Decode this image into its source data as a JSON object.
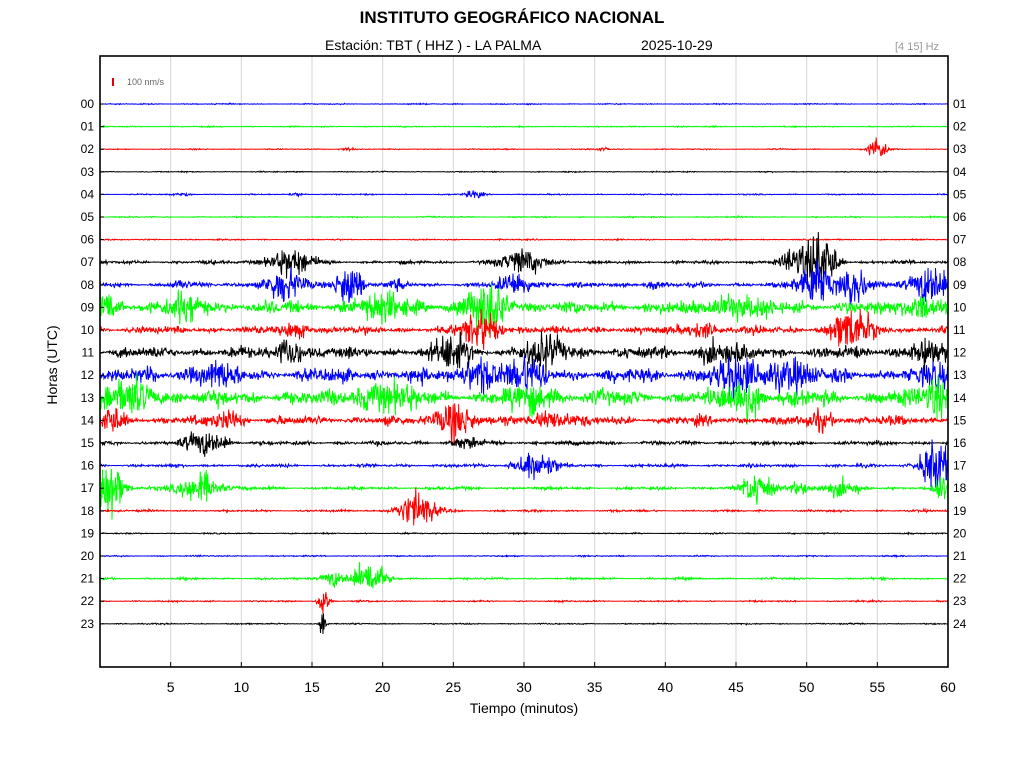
{
  "header": {
    "title": "INSTITUTO GEOGRÁFICO NACIONAL",
    "station": "Estación:  TBT ( HHZ ) - LA PALMA",
    "date": "2025-10-29",
    "band": "[4 15] Hz"
  },
  "chart_data": {
    "type": "line",
    "title": "INSTITUTO GEOGRÁFICO NACIONAL",
    "xlabel": "Tiempo (minutos)",
    "ylabel": "Horas (UTC)",
    "xlim": [
      0,
      60
    ],
    "x_ticks": [
      "5",
      "10",
      "15",
      "20",
      "25",
      "30",
      "35",
      "40",
      "45",
      "50",
      "55",
      "60"
    ],
    "left_ticks": [
      "00",
      "01",
      "02",
      "03",
      "04",
      "05",
      "06",
      "07",
      "08",
      "09",
      "10",
      "11",
      "12",
      "13",
      "14",
      "15",
      "16",
      "17",
      "18",
      "19",
      "20",
      "21",
      "22",
      "23"
    ],
    "right_ticks": [
      "01",
      "02",
      "03",
      "04",
      "05",
      "06",
      "07",
      "08",
      "09",
      "10",
      "11",
      "12",
      "13",
      "14",
      "15",
      "16",
      "17",
      "18",
      "19",
      "20",
      "21",
      "22",
      "23",
      "24"
    ],
    "scale_label": "100 nm/s",
    "scale_color": "#e00000",
    "colors": [
      "#0000ff",
      "#00ff00",
      "#ff0000",
      "#000000"
    ],
    "grid": true,
    "series": [
      {
        "hour": "00",
        "noise": 0.4,
        "events": []
      },
      {
        "hour": "01",
        "noise": 0.45,
        "events": []
      },
      {
        "hour": "02",
        "noise": 0.4,
        "events": [
          {
            "t": 55.0,
            "amp": 10,
            "dur": 0.6
          },
          {
            "t": 17.5,
            "amp": 1.2,
            "dur": 0.5
          },
          {
            "t": 35.5,
            "amp": 1.2,
            "dur": 0.5
          }
        ]
      },
      {
        "hour": "03",
        "noise": 0.4,
        "events": []
      },
      {
        "hour": "04",
        "noise": 0.45,
        "events": [
          {
            "t": 26.5,
            "amp": 3,
            "dur": 0.6
          },
          {
            "t": 6,
            "amp": 1.2,
            "dur": 0.5
          },
          {
            "t": 14,
            "amp": 1.2,
            "dur": 0.5
          }
        ]
      },
      {
        "hour": "05",
        "noise": 0.5,
        "events": []
      },
      {
        "hour": "06",
        "noise": 0.5,
        "events": []
      },
      {
        "hour": "07",
        "noise": 1.3,
        "events": [
          {
            "t": 13.5,
            "amp": 10,
            "dur": 1.6
          },
          {
            "t": 30,
            "amp": 9,
            "dur": 1.6
          },
          {
            "t": 49.5,
            "amp": 12,
            "dur": 1.2
          },
          {
            "t": 51.2,
            "amp": 22,
            "dur": 0.9
          }
        ]
      },
      {
        "hour": "08",
        "noise": 1.8,
        "events": [
          {
            "t": 13,
            "amp": 12,
            "dur": 1.4
          },
          {
            "t": 17.6,
            "amp": 18,
            "dur": 0.9
          },
          {
            "t": 29.5,
            "amp": 9,
            "dur": 1.2
          },
          {
            "t": 50.6,
            "amp": 18,
            "dur": 1.2
          },
          {
            "t": 53.5,
            "amp": 12,
            "dur": 1.1
          },
          {
            "t": 58.8,
            "amp": 16,
            "dur": 1.3
          },
          {
            "t": 5.7,
            "amp": 4,
            "dur": 0.5
          },
          {
            "t": 39.1,
            "amp": 4,
            "dur": 0.5
          },
          {
            "t": 21.1,
            "amp": 3,
            "dur": 0.6
          }
        ]
      },
      {
        "hour": "09",
        "noise": 5,
        "events": [
          {
            "t": 0.3,
            "amp": 12,
            "dur": 1
          },
          {
            "t": 27.4,
            "amp": 18,
            "dur": 1.4
          },
          {
            "t": 6,
            "amp": 8,
            "dur": 1.5
          },
          {
            "t": 20,
            "amp": 8,
            "dur": 2
          },
          {
            "t": 45,
            "amp": 7,
            "dur": 2
          },
          {
            "t": 58,
            "amp": 8,
            "dur": 1.5
          }
        ]
      },
      {
        "hour": "10",
        "noise": 3,
        "events": [
          {
            "t": 27,
            "amp": 14,
            "dur": 1.2
          },
          {
            "t": 53.2,
            "amp": 15,
            "dur": 1.4
          },
          {
            "t": 42.5,
            "amp": 6,
            "dur": 1
          },
          {
            "t": 14,
            "amp": 5,
            "dur": 1
          }
        ]
      },
      {
        "hour": "11",
        "noise": 4.5,
        "events": [
          {
            "t": 13.5,
            "amp": 12,
            "dur": 0.8
          },
          {
            "t": 25,
            "amp": 12,
            "dur": 1.2
          },
          {
            "t": 31.5,
            "amp": 10,
            "dur": 1.5
          },
          {
            "t": 44,
            "amp": 8,
            "dur": 1.5
          },
          {
            "t": 58.5,
            "amp": 9,
            "dur": 1.2
          }
        ]
      },
      {
        "hour": "12",
        "noise": 5.5,
        "events": [
          {
            "t": 26.8,
            "amp": 14,
            "dur": 1
          },
          {
            "t": 30,
            "amp": 11,
            "dur": 1.5
          },
          {
            "t": 45,
            "amp": 14,
            "dur": 1.5
          },
          {
            "t": 48.5,
            "amp": 11,
            "dur": 1.5
          },
          {
            "t": 59.3,
            "amp": 9,
            "dur": 0.7
          },
          {
            "t": 8,
            "amp": 7,
            "dur": 1.5
          }
        ]
      },
      {
        "hour": "13",
        "noise": 6,
        "events": [
          {
            "t": 2,
            "amp": 10,
            "dur": 2
          },
          {
            "t": 20,
            "amp": 9,
            "dur": 2
          },
          {
            "t": 30.5,
            "amp": 9,
            "dur": 1.5
          },
          {
            "t": 45.5,
            "amp": 16,
            "dur": 1.2
          },
          {
            "t": 59,
            "amp": 13,
            "dur": 0.8
          }
        ]
      },
      {
        "hour": "14",
        "noise": 3.5,
        "events": [
          {
            "t": 0.7,
            "amp": 10,
            "dur": 0.8
          },
          {
            "t": 25,
            "amp": 14,
            "dur": 1.2
          },
          {
            "t": 9,
            "amp": 6,
            "dur": 1
          },
          {
            "t": 32,
            "amp": 6,
            "dur": 1.5
          },
          {
            "t": 51,
            "amp": 6,
            "dur": 1
          }
        ]
      },
      {
        "hour": "15",
        "noise": 1.6,
        "events": [
          {
            "t": 7.5,
            "amp": 9,
            "dur": 1.4
          },
          {
            "t": 26,
            "amp": 4,
            "dur": 1
          }
        ]
      },
      {
        "hour": "16",
        "noise": 1.2,
        "events": [
          {
            "t": 30.8,
            "amp": 12,
            "dur": 1.3
          },
          {
            "t": 59.1,
            "amp": 20,
            "dur": 1
          }
        ]
      },
      {
        "hour": "17",
        "noise": 1.3,
        "events": [
          {
            "t": 0.6,
            "amp": 24,
            "dur": 0.9
          },
          {
            "t": 7,
            "amp": 12,
            "dur": 1.4
          },
          {
            "t": 46.5,
            "amp": 13,
            "dur": 1
          },
          {
            "t": 52.5,
            "amp": 6,
            "dur": 1.2
          },
          {
            "t": 49.5,
            "amp": 5,
            "dur": 0.8
          },
          {
            "t": 59.5,
            "amp": 11,
            "dur": 0.5
          }
        ]
      },
      {
        "hour": "18",
        "noise": 0.8,
        "events": [
          {
            "t": 22.4,
            "amp": 14,
            "dur": 1.3
          }
        ]
      },
      {
        "hour": "19",
        "noise": 0.5,
        "events": []
      },
      {
        "hour": "20",
        "noise": 0.5,
        "events": []
      },
      {
        "hour": "21",
        "noise": 0.8,
        "events": [
          {
            "t": 19,
            "amp": 14,
            "dur": 1.1
          },
          {
            "t": 16.5,
            "amp": 6,
            "dur": 0.8
          }
        ]
      },
      {
        "hour": "22",
        "noise": 0.6,
        "events": [
          {
            "t": 15.8,
            "amp": 14,
            "dur": 0.35
          }
        ]
      },
      {
        "hour": "23",
        "noise": 0.5,
        "events": [
          {
            "t": 15.8,
            "amp": 20,
            "dur": 0.2
          }
        ]
      }
    ]
  }
}
